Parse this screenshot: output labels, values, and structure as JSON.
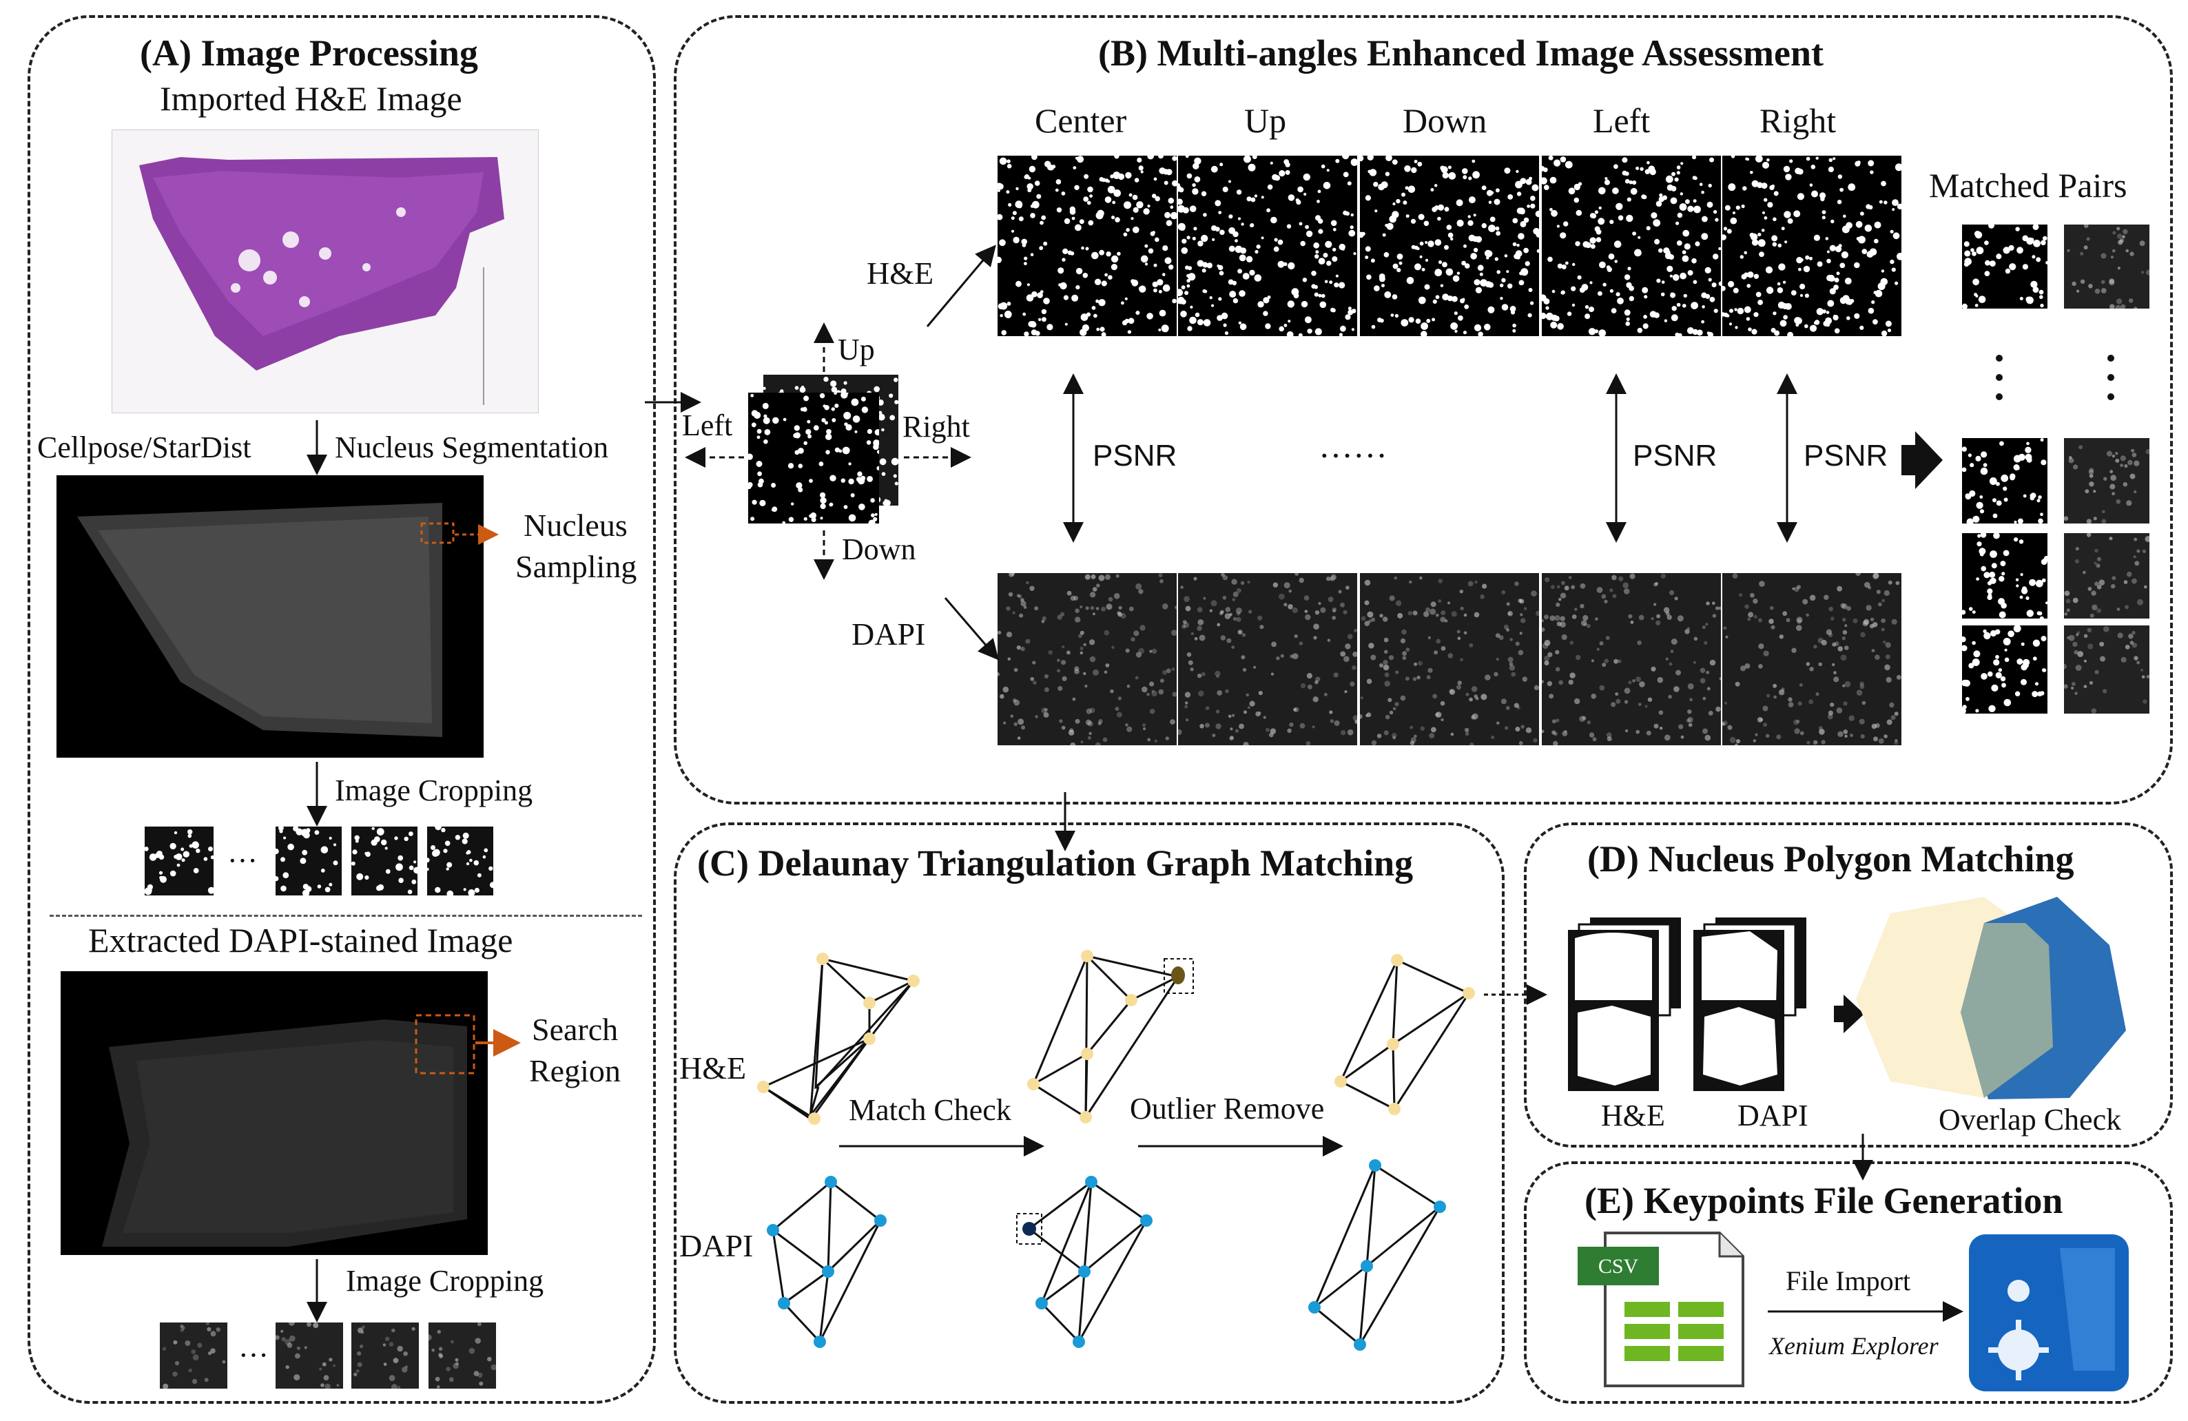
{
  "panel_a": {
    "title": "(A) Image Processing",
    "imported_label": "Imported H&E Image",
    "seg_tool_label": "Cellpose/StarDist",
    "seg_step_label": "Nucleus Segmentation",
    "sampling_label_1": "Nucleus",
    "sampling_label_2": "Sampling",
    "crop_label_1": "Image Cropping",
    "crop_ellipsis_1": "···",
    "dapi_title": "Extracted DAPI-stained Image",
    "search_label_1": "Search",
    "search_label_2": "Region",
    "crop_label_2": "Image Cropping",
    "crop_ellipsis_2": "···"
  },
  "panel_b": {
    "title": "(B) Multi-angles Enhanced Image Assessment",
    "columns": [
      "Center",
      "Up",
      "Down",
      "Left",
      "Right"
    ],
    "row_he": "H&E",
    "row_dapi": "DAPI",
    "dir_up": "Up",
    "dir_down": "Down",
    "dir_left": "Left",
    "dir_right": "Right",
    "psnr": "PSNR",
    "dots": "······",
    "matched_title": "Matched Pairs"
  },
  "panel_c": {
    "title": "(C) Delaunay Triangulation Graph Matching",
    "row_he": "H&E",
    "row_dapi": "DAPI",
    "step_1": "Match Check",
    "step_2": "Outlier Remove"
  },
  "panel_d": {
    "title": "(D) Nucleus Polygon Matching",
    "he_label": "H&E",
    "dapi_label": "DAPI",
    "overlap_label": "Overlap Check"
  },
  "panel_e": {
    "title": "(E) Keypoints File Generation",
    "csv_label": "CSV",
    "import_label": "File Import",
    "tool_label": "Xenium Explorer"
  },
  "colors": {
    "he_purple": "#8e3fa6",
    "arrow_orange": "#cc5a12",
    "he_node": "#f7dd9a",
    "dapi_node": "#1a9ad6",
    "outlier_he": "#6b5417",
    "outlier_dapi": "#0d2a55",
    "poly_cream": "#fbf0cf",
    "poly_blue": "#2b6fb6",
    "poly_overlap": "#8fa8a0",
    "csv_green": "#2e7d32",
    "xenium_blue": "#1565c0"
  }
}
